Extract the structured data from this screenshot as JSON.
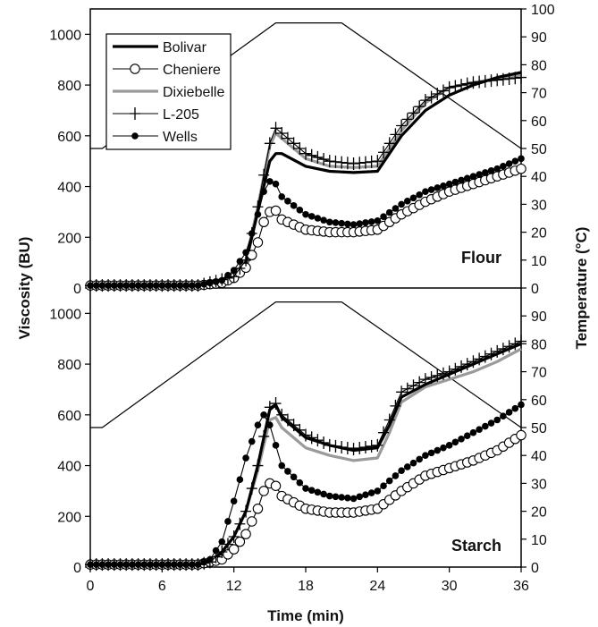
{
  "chart_data": {
    "type": "line",
    "xlabel": "Time (min)",
    "ylabel_left": "Viscosity (BU)",
    "ylabel_right": "Temperature (°C)",
    "x_ticks": [
      "0",
      "6",
      "12",
      "18",
      "24",
      "30",
      "36"
    ],
    "xlim": [
      0,
      36
    ],
    "viscosity_ticks": [
      "0",
      "200",
      "400",
      "600",
      "800",
      "1000"
    ],
    "viscosity_lim": [
      0,
      1100
    ],
    "temperature_ticks_top": [
      "0",
      "10",
      "20",
      "30",
      "40",
      "50",
      "60",
      "70",
      "80",
      "90",
      "100"
    ],
    "temperature_ticks_bottom": [
      "0",
      "10",
      "20",
      "30",
      "40",
      "50",
      "60",
      "70",
      "80",
      "90"
    ],
    "temperature_lim": [
      0,
      100
    ],
    "legend_position": "top-left",
    "legend": [
      {
        "name": "Bolivar",
        "style": "thick-black"
      },
      {
        "name": "Cheniere",
        "style": "open-circle"
      },
      {
        "name": "Dixiebelle",
        "style": "thick-gray"
      },
      {
        "name": "L-205",
        "style": "plus"
      },
      {
        "name": "Wells",
        "style": "filled-circle"
      }
    ],
    "temperature_profile": {
      "x": [
        0,
        1,
        15.5,
        21,
        36
      ],
      "y": [
        50,
        50,
        95,
        95,
        50
      ]
    },
    "panels": [
      {
        "label": "Flour",
        "series": [
          {
            "name": "Bolivar",
            "x": [
              0,
              9,
              12,
              13,
              14,
              15,
              15.5,
              16,
              18,
              20,
              22,
              24,
              26,
              28,
              30,
              32,
              34,
              36
            ],
            "y": [
              10,
              10,
              40,
              100,
              300,
              500,
              530,
              530,
              480,
              460,
              455,
              460,
              600,
              700,
              760,
              800,
              830,
              850
            ]
          },
          {
            "name": "Cheniere",
            "x": [
              0,
              9,
              11,
              12,
              13,
              14,
              14.5,
              15,
              15.5,
              16,
              18,
              20,
              22,
              24,
              26,
              28,
              30,
              32,
              34,
              36
            ],
            "y": [
              10,
              10,
              20,
              40,
              80,
              180,
              260,
              300,
              305,
              270,
              230,
              220,
              220,
              230,
              290,
              340,
              380,
              410,
              440,
              470
            ]
          },
          {
            "name": "Dixiebelle",
            "x": [
              0,
              9,
              12,
              13,
              14,
              15,
              15.5,
              16,
              18,
              20,
              22,
              24,
              26,
              28,
              30,
              32,
              34,
              36
            ],
            "y": [
              10,
              10,
              45,
              110,
              320,
              560,
              610,
              590,
              510,
              480,
              475,
              480,
              620,
              730,
              790,
              810,
              825,
              840
            ]
          },
          {
            "name": "L-205",
            "x": [
              0,
              9,
              12,
              13,
              14,
              15,
              15.5,
              16,
              18,
              20,
              22,
              24,
              26,
              28,
              30,
              32,
              34,
              36
            ],
            "y": [
              10,
              10,
              45,
              110,
              320,
              570,
              630,
              610,
              530,
              500,
              490,
              500,
              640,
              740,
              790,
              810,
              820,
              830
            ]
          },
          {
            "name": "Wells",
            "x": [
              0,
              9,
              11,
              12,
              13,
              14,
              14.5,
              15,
              15.5,
              16,
              18,
              20,
              22,
              24,
              26,
              28,
              30,
              32,
              34,
              36
            ],
            "y": [
              10,
              10,
              30,
              70,
              140,
              290,
              380,
              420,
              410,
              360,
              290,
              260,
              250,
              265,
              330,
              380,
              410,
              440,
              470,
              510
            ]
          }
        ]
      },
      {
        "label": "Starch",
        "series": [
          {
            "name": "Bolivar",
            "x": [
              0,
              9,
              10,
              11,
              12,
              13,
              14,
              15,
              15.5,
              16,
              18,
              20,
              22,
              24,
              25,
              26,
              28,
              30,
              32,
              34,
              36
            ],
            "y": [
              10,
              10,
              20,
              60,
              120,
              220,
              400,
              620,
              640,
              590,
              510,
              480,
              460,
              470,
              560,
              670,
              720,
              760,
              800,
              840,
              880
            ]
          },
          {
            "name": "Cheniere",
            "x": [
              0,
              9,
              11,
              12,
              13,
              14,
              14.5,
              15,
              15.5,
              16,
              18,
              20,
              22,
              24,
              26,
              28,
              30,
              32,
              34,
              36
            ],
            "y": [
              10,
              10,
              30,
              70,
              130,
              230,
              300,
              330,
              320,
              280,
              230,
              215,
              215,
              230,
              300,
              360,
              390,
              420,
              460,
              520
            ]
          },
          {
            "name": "Dixiebelle",
            "x": [
              0,
              9,
              10,
              11,
              12,
              13,
              14,
              15,
              15.5,
              16,
              18,
              20,
              22,
              24,
              25,
              26,
              28,
              30,
              32,
              34,
              36
            ],
            "y": [
              10,
              10,
              20,
              60,
              120,
              220,
              380,
              580,
              590,
              550,
              470,
              440,
              420,
              430,
              530,
              650,
              710,
              740,
              770,
              810,
              860
            ]
          },
          {
            "name": "L-205",
            "x": [
              0,
              9,
              10,
              11,
              12,
              13,
              14,
              15,
              15.5,
              16,
              18,
              20,
              22,
              24,
              25,
              26,
              28,
              30,
              32,
              34,
              36
            ],
            "y": [
              10,
              10,
              20,
              60,
              120,
              220,
              400,
              630,
              645,
              600,
              520,
              480,
              465,
              480,
              580,
              690,
              740,
              770,
              810,
              850,
              890
            ]
          },
          {
            "name": "Wells",
            "x": [
              0,
              9,
              10,
              11,
              12,
              13,
              14,
              14.5,
              15,
              15.5,
              16,
              18,
              20,
              22,
              24,
              26,
              28,
              30,
              32,
              34,
              36
            ],
            "y": [
              10,
              10,
              30,
              100,
              260,
              430,
              560,
              600,
              560,
              480,
              400,
              310,
              280,
              270,
              300,
              380,
              440,
              480,
              530,
              580,
              640
            ]
          }
        ]
      }
    ]
  }
}
